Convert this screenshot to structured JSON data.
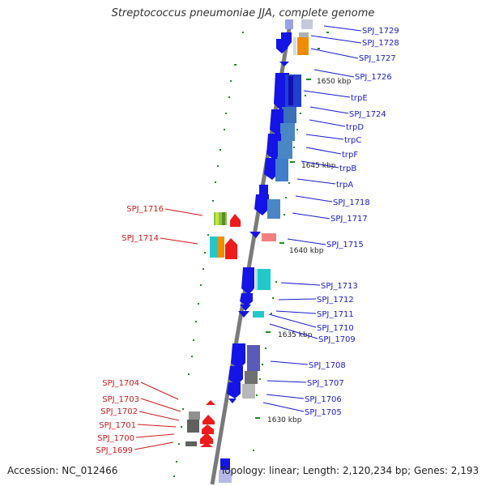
{
  "title": "Streptococcus pneumoniae JJA, complete genome",
  "accession": "Accession: NC_012466",
  "topology": "Topology: linear; Length: 2,120,234 bp; Genes: 2,193",
  "colors": {
    "backbone": "#808080",
    "right_label": "#1a1acc",
    "left_label": "#cc1a1a",
    "tick": "#1f8a1f",
    "blue": "#1414e6",
    "steel": "#4a86c4",
    "orange": "#f08c00",
    "red": "#ee1c1c",
    "cyan": "#22c8c8",
    "salmon": "#f08080",
    "gray": "#606060"
  },
  "scale_labels": [
    "1650 kbp",
    "1645 kbp",
    "1640 kbp",
    "1635 kbp",
    "1630 kbp"
  ],
  "right_genes": [
    "SPJ_1729",
    "SPJ_1728",
    "SPJ_1727",
    "SPJ_1726",
    "trpE",
    "SPJ_1724",
    "trpD",
    "trpC",
    "trpF",
    "trpB",
    "trpA",
    "SPJ_1718",
    "SPJ_1717",
    "SPJ_1715",
    "SPJ_1713",
    "SPJ_1712",
    "SPJ_1711",
    "SPJ_1710",
    "SPJ_1709",
    "SPJ_1708",
    "SPJ_1707",
    "SPJ_1706",
    "SPJ_1705"
  ],
  "left_genes": [
    "SPJ_1716",
    "SPJ_1714",
    "SPJ_1704",
    "SPJ_1703",
    "SPJ_1702",
    "SPJ_1701",
    "SPJ_1700",
    "SPJ_1699"
  ]
}
